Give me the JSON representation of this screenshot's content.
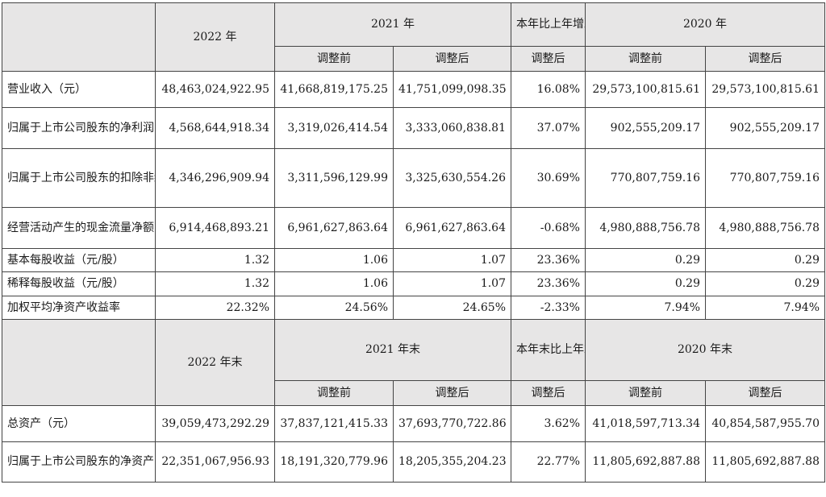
{
  "header1": {
    "y2022": "2022 年",
    "y2021": "2021 年",
    "change": "本年比上年增减",
    "y2020": "2020 年",
    "before": "调整前",
    "after": "调整后",
    "change_sub": "调整后"
  },
  "rows1": [
    {
      "label": "营业收入（元）",
      "v2022": "48,463,024,922.95",
      "v2021_before": "41,668,819,175.25",
      "v2021_after": "41,751,099,098.35",
      "change": "16.08%",
      "v2020_before": "29,573,100,815.61",
      "v2020_after": "29,573,100,815.61"
    },
    {
      "label": "归属于上市公司股东的净利润（元）",
      "v2022": "4,568,644,918.34",
      "v2021_before": "3,319,026,414.54",
      "v2021_after": "3,333,060,838.81",
      "change": "37.07%",
      "v2020_before": "902,555,209.17",
      "v2020_after": "902,555,209.17"
    },
    {
      "label": "归属于上市公司股东的扣除非经常性损益的净利润（元）",
      "v2022": "4,346,296,909.94",
      "v2021_before": "3,311,596,129.99",
      "v2021_after": "3,325,630,554.26",
      "change": "30.69%",
      "v2020_before": "770,807,759.16",
      "v2020_after": "770,807,759.16"
    },
    {
      "label": "经营活动产生的现金流量净额（元）",
      "v2022": "6,914,468,893.21",
      "v2021_before": "6,961,627,863.64",
      "v2021_after": "6,961,627,863.64",
      "change": "-0.68%",
      "v2020_before": "4,980,888,756.78",
      "v2020_after": "4,980,888,756.78"
    },
    {
      "label": "基本每股收益（元/股）",
      "v2022": "1.32",
      "v2021_before": "1.06",
      "v2021_after": "1.07",
      "change": "23.36%",
      "v2020_before": "0.29",
      "v2020_after": "0.29"
    },
    {
      "label": "稀释每股收益（元/股）",
      "v2022": "1.32",
      "v2021_before": "1.06",
      "v2021_after": "1.07",
      "change": "23.36%",
      "v2020_before": "0.29",
      "v2020_after": "0.29"
    },
    {
      "label": "加权平均净资产收益率",
      "v2022": "22.32%",
      "v2021_before": "24.56%",
      "v2021_after": "24.65%",
      "change": "-2.33%",
      "v2020_before": "7.94%",
      "v2020_after": "7.94%"
    }
  ],
  "header2": {
    "y2022": "2022 年末",
    "y2021": "2021 年末",
    "change": "本年末比上年末增减",
    "y2020": "2020 年末",
    "before": "调整前",
    "after": "调整后",
    "change_sub": "调整后"
  },
  "rows2": [
    {
      "label": "总资产（元）",
      "v2022": "39,059,473,292.29",
      "v2021_before": "37,837,121,415.33",
      "v2021_after": "37,693,770,722.86",
      "change": "3.62%",
      "v2020_before": "41,018,597,713.34",
      "v2020_after": "40,854,587,955.70"
    },
    {
      "label": "归属于上市公司股东的净资产（元）",
      "v2022": "22,351,067,956.93",
      "v2021_before": "18,191,320,779.96",
      "v2021_after": "18,205,355,204.23",
      "change": "22.77%",
      "v2020_before": "11,805,692,887.88",
      "v2020_after": "11,805,692,887.88"
    }
  ]
}
